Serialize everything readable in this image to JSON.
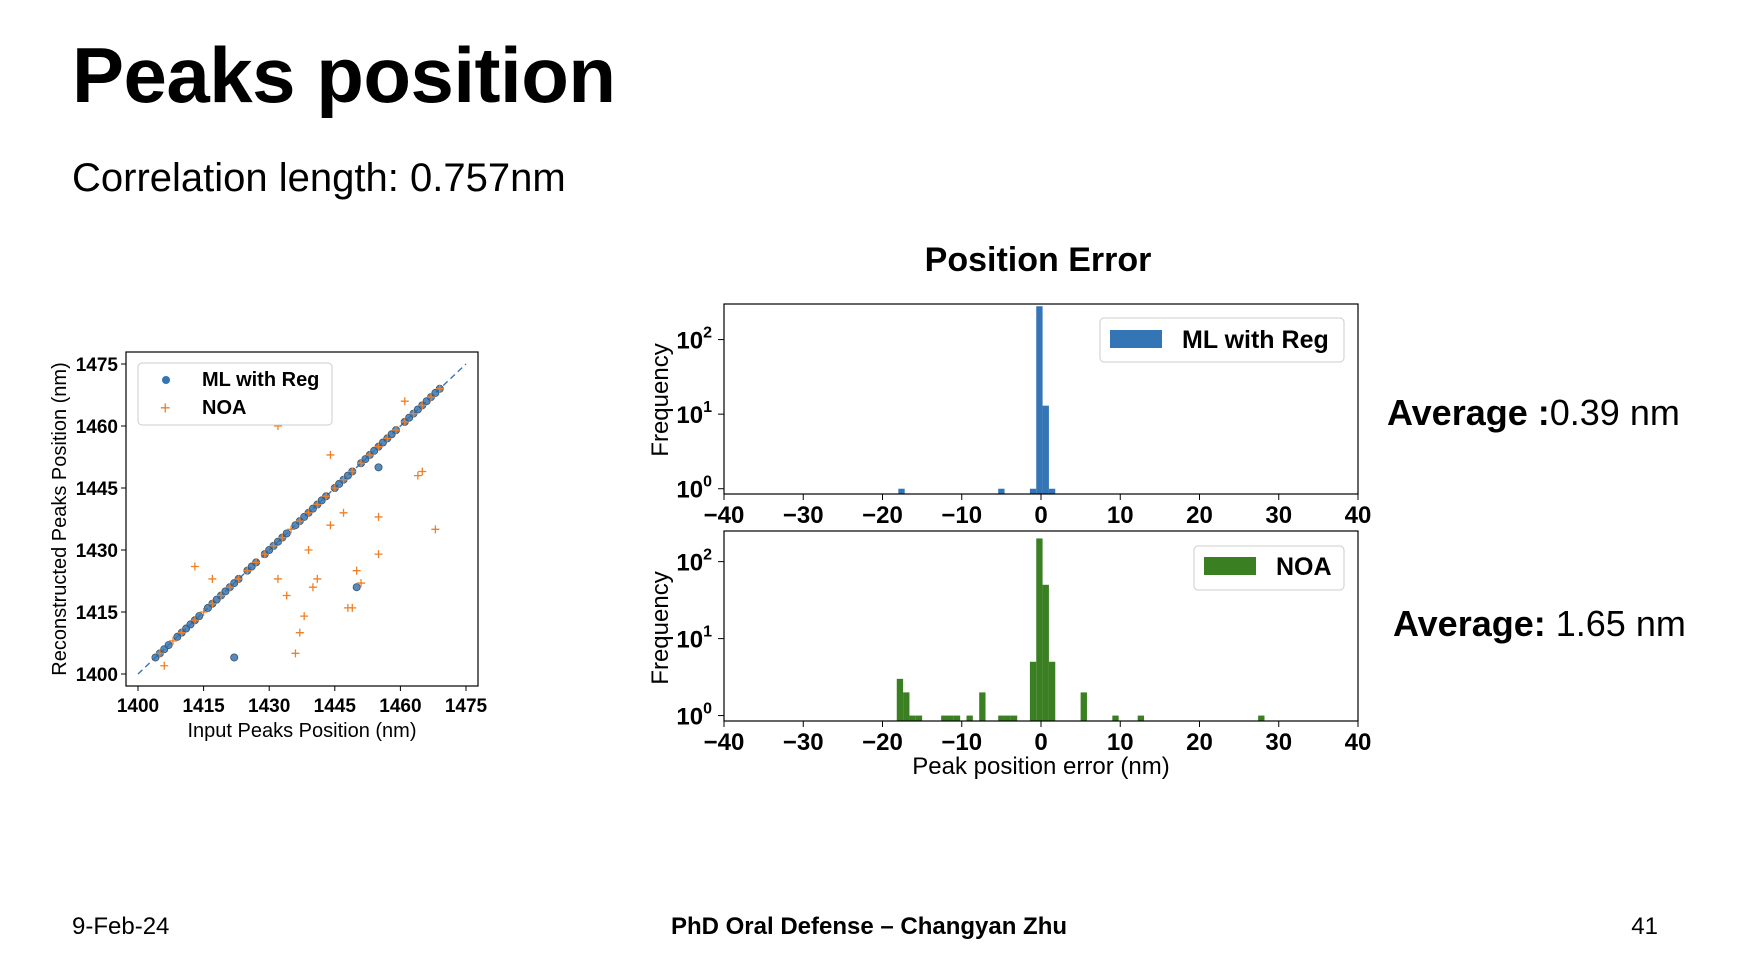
{
  "slide": {
    "title": "Peaks position",
    "subtitle": "Correlation length: 0.757nm"
  },
  "averages": [
    {
      "label": "Average :",
      "value": "0.39 nm"
    },
    {
      "label": "Average:",
      "value": " 1.65 nm"
    }
  ],
  "footer": {
    "date": "9-Feb-24",
    "center": "PhD Oral Defense – Changyan Zhu",
    "page": "41"
  },
  "colors": {
    "blue": "#3475b6",
    "orange": "#f08026",
    "green": "#3a7f22"
  },
  "chart_data": [
    {
      "type": "scatter",
      "title": "",
      "xlabel": "Input Peaks Position (nm)",
      "ylabel": "Reconstructed Peaks Position (nm)",
      "xlim": [
        1400,
        1475
      ],
      "ylim": [
        1400,
        1475
      ],
      "xticks": [
        "1400",
        "1415",
        "1430",
        "1445",
        "1460",
        "1475"
      ],
      "yticks": [
        "1400",
        "1415",
        "1430",
        "1445",
        "1460",
        "1475"
      ],
      "grid": false,
      "legend_position": "top-left",
      "legend": [
        "ML with Reg",
        "NOA"
      ],
      "reference_line": "y = x (dashed)",
      "series": [
        {
          "name": "ML with Reg",
          "marker": "circle",
          "x": [
            1404,
            1405,
            1406,
            1407,
            1409,
            1410,
            1411,
            1412,
            1413,
            1414,
            1416,
            1417,
            1418,
            1419,
            1420,
            1421,
            1422,
            1423,
            1425,
            1426,
            1427,
            1429,
            1430,
            1431,
            1432,
            1433,
            1434,
            1436,
            1437,
            1438,
            1439,
            1440,
            1441,
            1442,
            1443,
            1445,
            1446,
            1447,
            1448,
            1449,
            1451,
            1452,
            1453,
            1454,
            1455,
            1456,
            1457,
            1458,
            1459,
            1461,
            1462,
            1463,
            1464,
            1465,
            1466,
            1467,
            1468,
            1469,
            1422,
            1450,
            1455
          ],
          "y": [
            1404,
            1405,
            1406,
            1407,
            1409,
            1410,
            1411,
            1412,
            1413,
            1414,
            1416,
            1417,
            1418,
            1419,
            1420,
            1421,
            1422,
            1423,
            1425,
            1426,
            1427,
            1429,
            1430,
            1431,
            1432,
            1433,
            1434,
            1436,
            1437,
            1438,
            1439,
            1440,
            1441,
            1442,
            1443,
            1445,
            1446,
            1447,
            1448,
            1449,
            1451,
            1452,
            1453,
            1454,
            1455,
            1456,
            1457,
            1458,
            1459,
            1461,
            1462,
            1463,
            1464,
            1465,
            1466,
            1467,
            1468,
            1469,
            1404,
            1421,
            1450
          ]
        },
        {
          "name": "NOA",
          "marker": "plus",
          "x": [
            1405,
            1406,
            1408,
            1410,
            1413,
            1415,
            1417,
            1419,
            1421,
            1423,
            1425,
            1427,
            1429,
            1431,
            1433,
            1435,
            1437,
            1439,
            1441,
            1443,
            1445,
            1447,
            1449,
            1451,
            1453,
            1455,
            1457,
            1459,
            1461,
            1463,
            1465,
            1467,
            1469,
            1413,
            1417,
            1432,
            1434,
            1436,
            1437,
            1438,
            1439,
            1440,
            1441,
            1444,
            1444,
            1447,
            1448,
            1449,
            1450,
            1451,
            1455,
            1455,
            1464,
            1465,
            1468,
            1461,
            1432
          ],
          "y": [
            1405,
            1402,
            1408,
            1410,
            1413,
            1415,
            1417,
            1419,
            1421,
            1423,
            1425,
            1427,
            1429,
            1431,
            1433,
            1435,
            1437,
            1439,
            1441,
            1443,
            1445,
            1447,
            1449,
            1451,
            1453,
            1455,
            1457,
            1459,
            1461,
            1463,
            1465,
            1467,
            1469,
            1426,
            1423,
            1423,
            1419,
            1405,
            1410,
            1414,
            1430,
            1421,
            1423,
            1436,
            1453,
            1439,
            1416,
            1416,
            1425,
            1422,
            1438,
            1429,
            1448,
            1449,
            1435,
            1466,
            1460
          ]
        }
      ]
    },
    {
      "type": "bar",
      "title": "Position Error",
      "xlabel": "",
      "ylabel": "Frequency",
      "xlim": [
        -40,
        40
      ],
      "yscale": "log",
      "ylim": [
        0.85,
        300
      ],
      "xticks": [
        "−40",
        "−30",
        "−20",
        "−10",
        "0",
        "10",
        "20",
        "30",
        "40"
      ],
      "legend_position": "top-right",
      "series": [
        {
          "name": "ML with Reg",
          "bin_width": 0.8,
          "bins": [
            -18.0,
            -5.4,
            -1.4,
            -0.6,
            0.2,
            1.0
          ],
          "counts": [
            1,
            1,
            1,
            280,
            13,
            1
          ]
        }
      ]
    },
    {
      "type": "bar",
      "title": "",
      "xlabel": "Peak position error (nm)",
      "ylabel": "Frequency",
      "xlim": [
        -40,
        40
      ],
      "yscale": "log",
      "ylim": [
        0.85,
        250
      ],
      "xticks": [
        "−40",
        "−30",
        "−20",
        "−10",
        "0",
        "10",
        "20",
        "30",
        "40"
      ],
      "legend_position": "top-right",
      "series": [
        {
          "name": "NOA",
          "bin_width": 0.8,
          "bins": [
            -18.2,
            -17.4,
            -16.6,
            -15.8,
            -12.6,
            -11.8,
            -11.0,
            -9.4,
            -7.8,
            -5.4,
            -4.6,
            -3.8,
            -1.4,
            -0.6,
            0.2,
            1.0,
            5.0,
            9.0,
            12.2,
            27.4
          ],
          "counts": [
            3,
            2,
            1,
            1,
            1,
            1,
            1,
            1,
            2,
            1,
            1,
            1,
            5,
            200,
            50,
            5,
            2,
            1,
            1,
            1
          ]
        }
      ]
    }
  ]
}
